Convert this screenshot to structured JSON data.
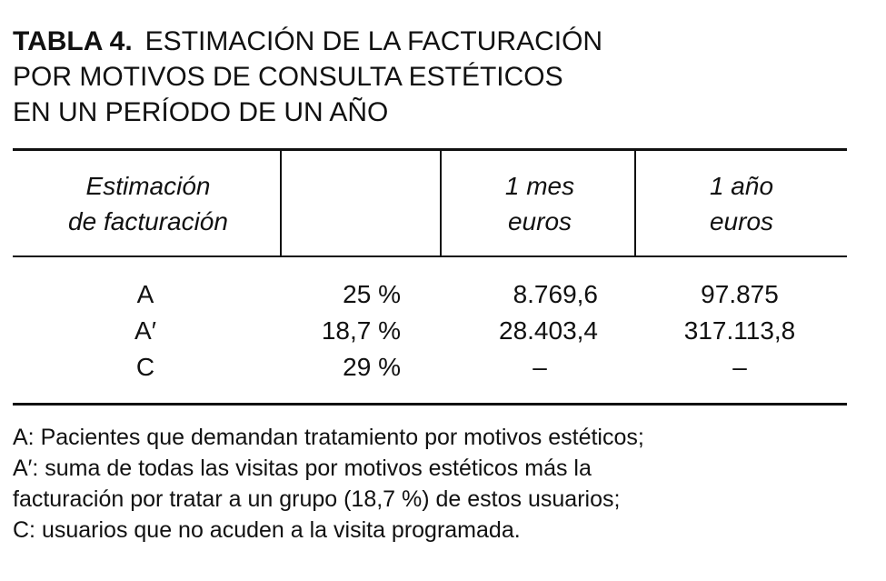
{
  "title": {
    "label": "TABLA 4.",
    "lines": [
      "ESTIMACIÓN DE LA FACTURACIÓN",
      "POR MOTIVOS DE CONSULTA ESTÉTICOS",
      "EN UN PERÍODO DE UN AÑO"
    ]
  },
  "table": {
    "columns": [
      [
        "Estimación",
        "de facturación"
      ],
      [],
      [
        "1 mes",
        "euros"
      ],
      [
        "1 año",
        "euros"
      ]
    ],
    "rows": [
      [
        "A",
        "25 %",
        "8.769,6",
        "97.875"
      ],
      [
        "A′",
        "18,7 %",
        "28.403,4",
        "317.113,8"
      ],
      [
        "C",
        "29 %",
        "–",
        "–"
      ]
    ]
  },
  "footnotes": [
    "A: Pacientes que demandan tratamiento por motivos estéticos;",
    "A′: suma de todas las visitas por motivos estéticos más la",
    "facturación por tratar a un grupo (18,7 %) de estos usuarios;",
    "C: usuarios que no acuden a la visita programada."
  ]
}
